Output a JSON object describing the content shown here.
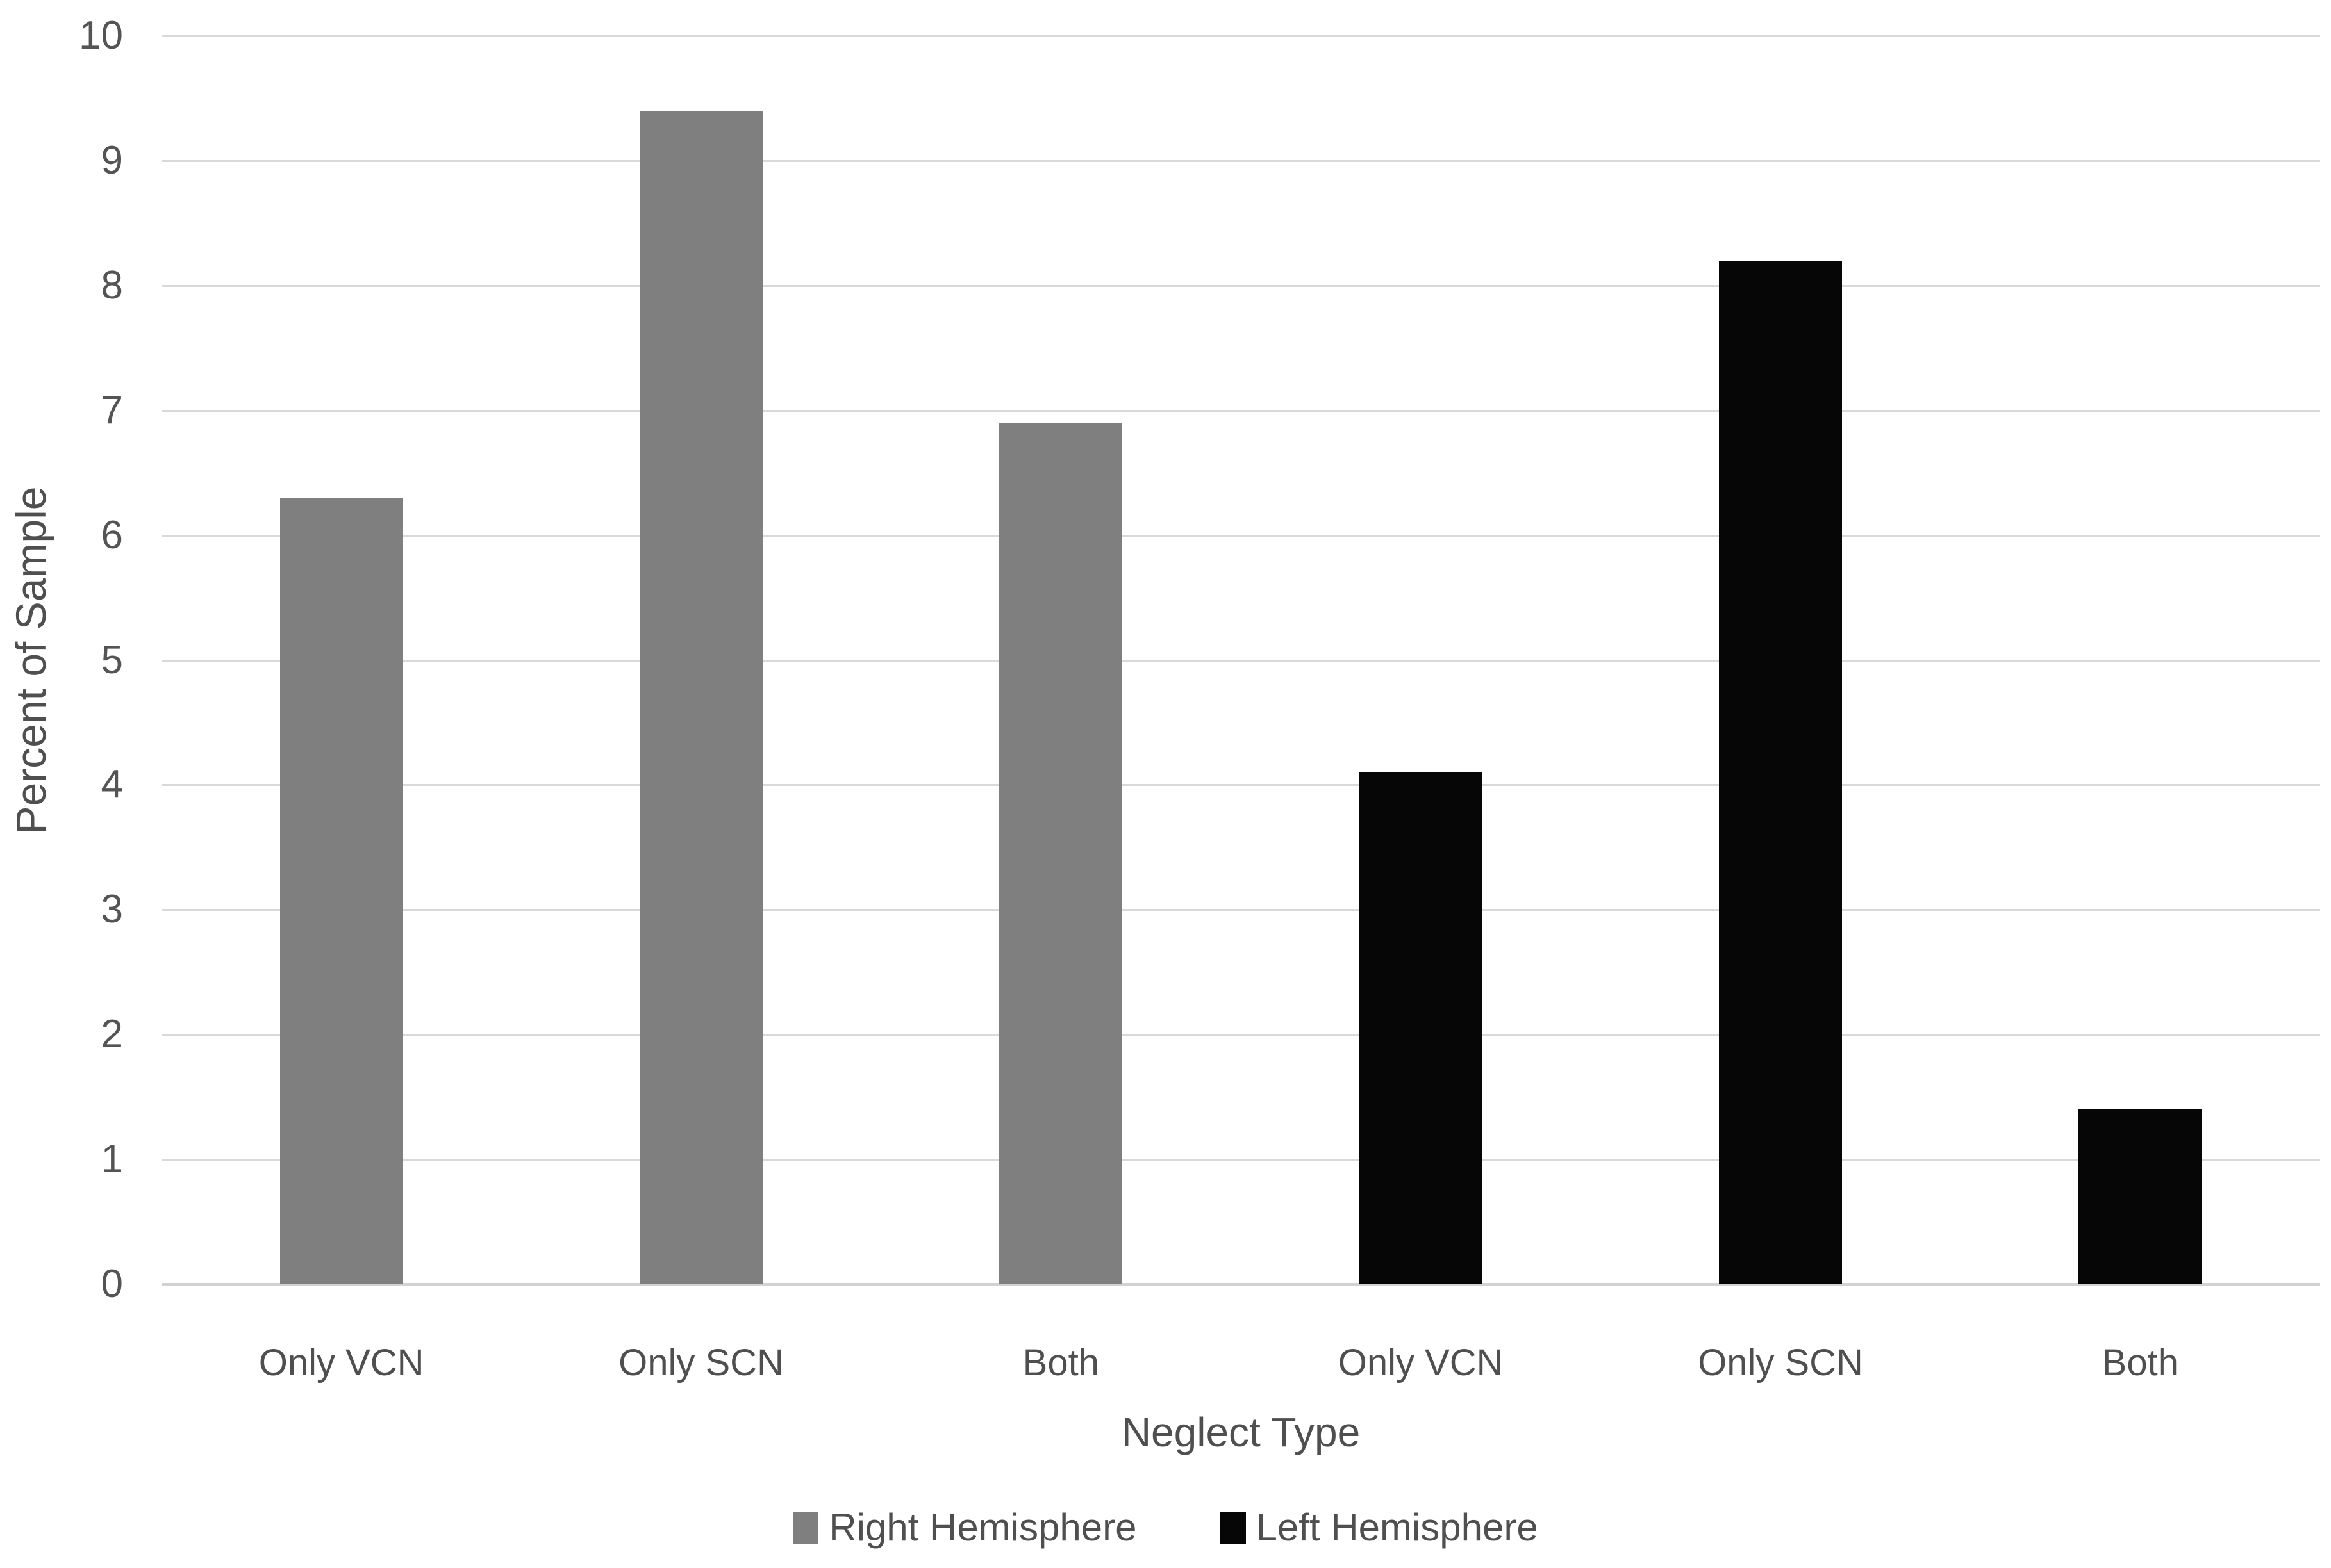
{
  "chart_data": {
    "type": "bar",
    "title": "",
    "xlabel": "Neglect Type",
    "ylabel": "Percent of Sample",
    "categories": [
      "Only VCN",
      "Only SCN",
      "Both",
      "Only VCN",
      "Only SCN",
      "Both"
    ],
    "series": [
      {
        "name": "Right Hemisphere",
        "color": "#7f7f7f",
        "values": [
          6.3,
          9.4,
          6.9,
          null,
          null,
          null
        ]
      },
      {
        "name": "Left Hemisphere",
        "color": "#060606",
        "values": [
          null,
          null,
          null,
          4.1,
          8.2,
          1.4
        ]
      }
    ],
    "ylim": [
      0,
      10
    ],
    "yticks": [
      0,
      1,
      2,
      3,
      4,
      5,
      6,
      7,
      8,
      9,
      10
    ],
    "grid": true,
    "gridline_color": "#d9d9d9",
    "background_color": "#ffffff",
    "legend_position": "bottom"
  }
}
